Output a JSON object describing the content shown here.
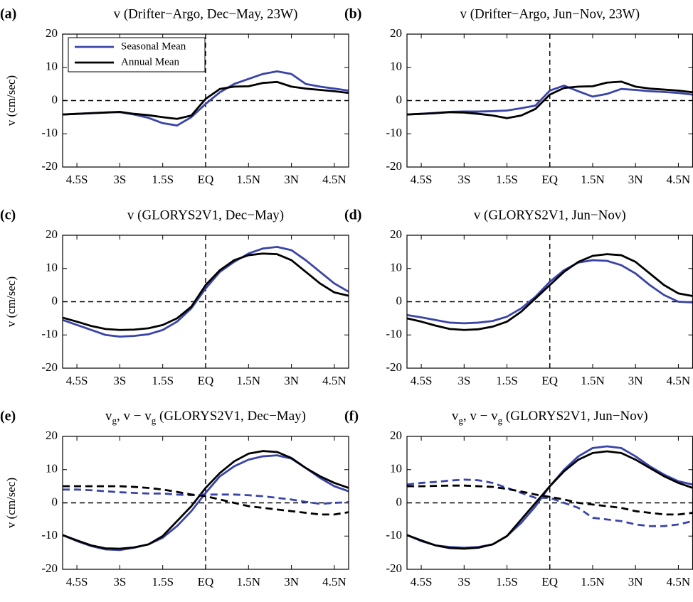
{
  "chart_data": [
    {
      "type": "line",
      "label": "(a)",
      "title": "v (Drifter−Argo, Dec−May, 23W)",
      "ylabel": "v (cm/sec)",
      "legend": "upper left",
      "x": [
        -5,
        -4.5,
        -4,
        -3.5,
        -3,
        -2.5,
        -2,
        -1.5,
        -1,
        -0.5,
        0,
        0.5,
        1,
        1.5,
        2,
        2.5,
        3,
        3.5,
        4,
        4.5,
        5
      ],
      "series": [
        {
          "name": "Seasonal Mean",
          "color": "#3a44a8",
          "values": [
            -4.2,
            -4.0,
            -3.8,
            -3.6,
            -3.5,
            -4.2,
            -5.2,
            -6.8,
            -7.5,
            -5,
            -1,
            2.5,
            5,
            6.5,
            8,
            8.8,
            8,
            5,
            4.2,
            3.6,
            3
          ]
        },
        {
          "name": "Annual Mean",
          "color": "#000000",
          "values": [
            -4.2,
            -4.0,
            -3.8,
            -3.6,
            -3.4,
            -4,
            -4.4,
            -5,
            -5.5,
            -4.5,
            0.5,
            3.5,
            4.2,
            4.3,
            5.3,
            5.6,
            4.2,
            3.6,
            3.2,
            2.8,
            2.3
          ]
        }
      ],
      "xlim": [
        -5,
        5
      ],
      "xticks": [
        {
          "value": -4.5,
          "label": "4.5S"
        },
        {
          "value": -3,
          "label": "3S"
        },
        {
          "value": -1.5,
          "label": "1.5S"
        },
        {
          "value": 0,
          "label": "EQ"
        },
        {
          "value": 1.5,
          "label": "1.5N"
        },
        {
          "value": 3,
          "label": "3N"
        },
        {
          "value": 4.5,
          "label": "4.5N"
        }
      ],
      "ylim": [
        -20,
        20
      ],
      "yticks": [
        -20,
        -10,
        0,
        10,
        20
      ]
    },
    {
      "type": "line",
      "label": "(b)",
      "title": "v (Drifter−Argo, Jun−Nov, 23W)",
      "x": [
        -5,
        -4.5,
        -4,
        -3.5,
        -3,
        -2.5,
        -2,
        -1.5,
        -1,
        -0.5,
        0,
        0.5,
        1,
        1.5,
        2,
        2.5,
        3,
        3.5,
        4,
        4.5,
        5
      ],
      "series": [
        {
          "color": "#3a44a8",
          "values": [
            -4.2,
            -4.0,
            -3.7,
            -3.4,
            -3.3,
            -3.3,
            -3.2,
            -3,
            -2.3,
            -1.5,
            3,
            4.5,
            2.8,
            1.2,
            2,
            3.5,
            3.2,
            2.8,
            2.6,
            2.3,
            1.8
          ]
        },
        {
          "color": "#000000",
          "values": [
            -4.2,
            -4.0,
            -3.8,
            -3.5,
            -3.6,
            -4,
            -4.5,
            -5.3,
            -4.5,
            -2.5,
            1.8,
            3.8,
            4.2,
            4.3,
            5.4,
            5.7,
            4.2,
            3.6,
            3.3,
            3,
            2.5
          ]
        }
      ],
      "xlim": [
        -5,
        5
      ],
      "xticks": [
        {
          "value": -4.5,
          "label": "4.5S"
        },
        {
          "value": -3,
          "label": "3S"
        },
        {
          "value": -1.5,
          "label": "1.5S"
        },
        {
          "value": 0,
          "label": "EQ"
        },
        {
          "value": 1.5,
          "label": "1.5N"
        },
        {
          "value": 3,
          "label": "3N"
        },
        {
          "value": 4.5,
          "label": "4.5N"
        }
      ],
      "ylim": [
        -20,
        20
      ],
      "yticks": [
        -20,
        -10,
        0,
        10,
        20
      ]
    },
    {
      "type": "line",
      "label": "(c)",
      "title": "v (GLORYS2V1, Dec−May)",
      "ylabel": "v (cm/sec)",
      "x": [
        -5,
        -4.5,
        -4,
        -3.5,
        -3,
        -2.5,
        -2,
        -1.5,
        -1,
        -0.5,
        0,
        0.5,
        1,
        1.5,
        2,
        2.5,
        3,
        3.5,
        4,
        4.5,
        5
      ],
      "series": [
        {
          "color": "#3a44a8",
          "values": [
            -5.5,
            -7,
            -8.5,
            -10,
            -10.5,
            -10.3,
            -9.8,
            -8.5,
            -6,
            -2,
            4,
            9,
            12,
            14.5,
            16,
            16.5,
            15.5,
            12.5,
            9,
            5.5,
            3
          ]
        },
        {
          "color": "#000000",
          "values": [
            -4.8,
            -6,
            -7.3,
            -8.2,
            -8.5,
            -8.4,
            -8,
            -7,
            -5,
            -1.5,
            5,
            9.5,
            12.5,
            14,
            14.5,
            14.3,
            12.5,
            9,
            5.5,
            2.8,
            1.8
          ]
        }
      ],
      "xlim": [
        -5,
        5
      ],
      "xticks": [
        {
          "value": -4.5,
          "label": "4.5S"
        },
        {
          "value": -3,
          "label": "3S"
        },
        {
          "value": -1.5,
          "label": "1.5S"
        },
        {
          "value": 0,
          "label": "EQ"
        },
        {
          "value": 1.5,
          "label": "1.5N"
        },
        {
          "value": 3,
          "label": "3N"
        },
        {
          "value": 4.5,
          "label": "4.5N"
        }
      ],
      "ylim": [
        -20,
        20
      ],
      "yticks": [
        -20,
        -10,
        0,
        10,
        20
      ]
    },
    {
      "type": "line",
      "label": "(d)",
      "title": "v (GLORYS2V1, Jun−Nov)",
      "x": [
        -5,
        -4.5,
        -4,
        -3.5,
        -3,
        -2.5,
        -2,
        -1.5,
        -1,
        -0.5,
        0,
        0.5,
        1,
        1.5,
        2,
        2.5,
        3,
        3.5,
        4,
        4.5,
        5
      ],
      "series": [
        {
          "color": "#3a44a8",
          "values": [
            -4,
            -4.7,
            -5.5,
            -6.3,
            -6.5,
            -6.3,
            -5.8,
            -4.5,
            -2,
            1.5,
            6,
            9.5,
            11.8,
            12.5,
            12.3,
            11,
            8.5,
            5,
            2,
            0,
            -0.2
          ]
        },
        {
          "color": "#000000",
          "values": [
            -5,
            -6,
            -7.2,
            -8.2,
            -8.5,
            -8.3,
            -7.5,
            -6,
            -3,
            1,
            5,
            9,
            12,
            13.8,
            14.3,
            14,
            12,
            8.5,
            5,
            2.5,
            1.7
          ]
        }
      ],
      "xlim": [
        -5,
        5
      ],
      "xticks": [
        {
          "value": -4.5,
          "label": "4.5S"
        },
        {
          "value": -3,
          "label": "3S"
        },
        {
          "value": -1.5,
          "label": "1.5S"
        },
        {
          "value": 0,
          "label": "EQ"
        },
        {
          "value": 1.5,
          "label": "1.5N"
        },
        {
          "value": 3,
          "label": "3N"
        },
        {
          "value": 4.5,
          "label": "4.5N"
        }
      ],
      "ylim": [
        -20,
        20
      ],
      "yticks": [
        -20,
        -10,
        0,
        10,
        20
      ]
    },
    {
      "type": "line",
      "label": "(e)",
      "title": [
        "v",
        {
          "sub": "g"
        },
        ", v − v",
        {
          "sub": "g"
        },
        " (GLORYS2V1, Dec−May)"
      ],
      "ylabel": "v (cm/sec)",
      "x": [
        -5,
        -4.5,
        -4,
        -3.5,
        -3,
        -2.5,
        -2,
        -1.5,
        -1,
        -0.5,
        0,
        0.5,
        1,
        1.5,
        2,
        2.5,
        3,
        3.5,
        4,
        4.5,
        5
      ],
      "series": [
        {
          "color": "#3a44a8",
          "values": [
            -9.7,
            -11.5,
            -13,
            -14,
            -14.2,
            -13.5,
            -12.5,
            -10.5,
            -7,
            -2.5,
            3,
            8,
            11,
            13,
            14,
            14.3,
            13.3,
            10.5,
            7.5,
            5,
            3.5
          ]
        },
        {
          "color": "#000000",
          "values": [
            -9.7,
            -11.3,
            -12.8,
            -13.7,
            -13.8,
            -13.4,
            -12.5,
            -10,
            -5.5,
            -1,
            4.5,
            9,
            12.5,
            14.8,
            15.6,
            15.3,
            13.5,
            10.5,
            8,
            6,
            4.5
          ]
        },
        {
          "color": "#3a44a8",
          "dash": true,
          "values": [
            4,
            4,
            3.8,
            3.5,
            3.2,
            3,
            2.8,
            2.8,
            2.5,
            2.3,
            2.5,
            2.5,
            2.5,
            2.3,
            2,
            1.5,
            1,
            0.3,
            -0.3,
            0,
            0.2
          ]
        },
        {
          "color": "#000000",
          "dash": true,
          "values": [
            5,
            5,
            5,
            5,
            5,
            4.8,
            4.5,
            4,
            3.3,
            2.5,
            2,
            1,
            0,
            -1,
            -1.5,
            -2,
            -2.5,
            -3,
            -3.5,
            -3.5,
            -2.8
          ]
        }
      ],
      "xlim": [
        -5,
        5
      ],
      "xticks": [
        {
          "value": -4.5,
          "label": "4.5S"
        },
        {
          "value": -3,
          "label": "3S"
        },
        {
          "value": -1.5,
          "label": "1.5S"
        },
        {
          "value": 0,
          "label": "EQ"
        },
        {
          "value": 1.5,
          "label": "1.5N"
        },
        {
          "value": 3,
          "label": "3N"
        },
        {
          "value": 4.5,
          "label": "4.5N"
        }
      ],
      "ylim": [
        -20,
        20
      ],
      "yticks": [
        -20,
        -10,
        0,
        10,
        20
      ]
    },
    {
      "type": "line",
      "label": "(f)",
      "title": [
        "v",
        {
          "sub": "g"
        },
        ", v − v",
        {
          "sub": "g"
        },
        " (GLORYS2V1, Jun−Nov)"
      ],
      "x": [
        -5,
        -4.5,
        -4,
        -3.5,
        -3,
        -2.5,
        -2,
        -1.5,
        -1,
        -0.5,
        0,
        0.5,
        1,
        1.5,
        2,
        2.5,
        3,
        3.5,
        4,
        4.5,
        5
      ],
      "series": [
        {
          "color": "#3a44a8",
          "values": [
            -9.7,
            -11.5,
            -12.8,
            -13.3,
            -13.5,
            -13.3,
            -12.5,
            -10,
            -6,
            -1,
            5,
            10,
            14,
            16.5,
            17,
            16.5,
            14,
            11,
            8.5,
            6.5,
            5.5
          ]
        },
        {
          "color": "#000000",
          "values": [
            -9.7,
            -11.3,
            -12.8,
            -13.6,
            -13.8,
            -13.5,
            -12.5,
            -10,
            -5,
            0,
            5,
            9.5,
            13,
            15,
            15.5,
            15,
            13,
            10.5,
            8,
            6,
            4.5
          ]
        },
        {
          "color": "#3a44a8",
          "dash": true,
          "values": [
            5.5,
            6,
            6.3,
            6.7,
            7,
            6.8,
            6,
            4.5,
            3,
            1.5,
            1.5,
            0,
            -1.5,
            -4.5,
            -5,
            -5.5,
            -6.5,
            -7,
            -7,
            -6.5,
            -5.5
          ]
        },
        {
          "color": "#000000",
          "dash": true,
          "values": [
            5,
            5,
            5.1,
            5.2,
            5.2,
            5,
            4.8,
            4.2,
            3.4,
            2.5,
            1.8,
            1,
            0,
            -0.5,
            -1,
            -1.5,
            -2.5,
            -3,
            -3.5,
            -3.5,
            -3
          ]
        }
      ],
      "xlim": [
        -5,
        5
      ],
      "xticks": [
        {
          "value": -4.5,
          "label": "4.5S"
        },
        {
          "value": -3,
          "label": "3S"
        },
        {
          "value": -1.5,
          "label": "1.5S"
        },
        {
          "value": 0,
          "label": "EQ"
        },
        {
          "value": 1.5,
          "label": "1.5N"
        },
        {
          "value": 3,
          "label": "3N"
        },
        {
          "value": 4.5,
          "label": "4.5N"
        }
      ],
      "ylim": [
        -20,
        20
      ],
      "yticks": [
        -20,
        -10,
        0,
        10,
        20
      ]
    }
  ]
}
